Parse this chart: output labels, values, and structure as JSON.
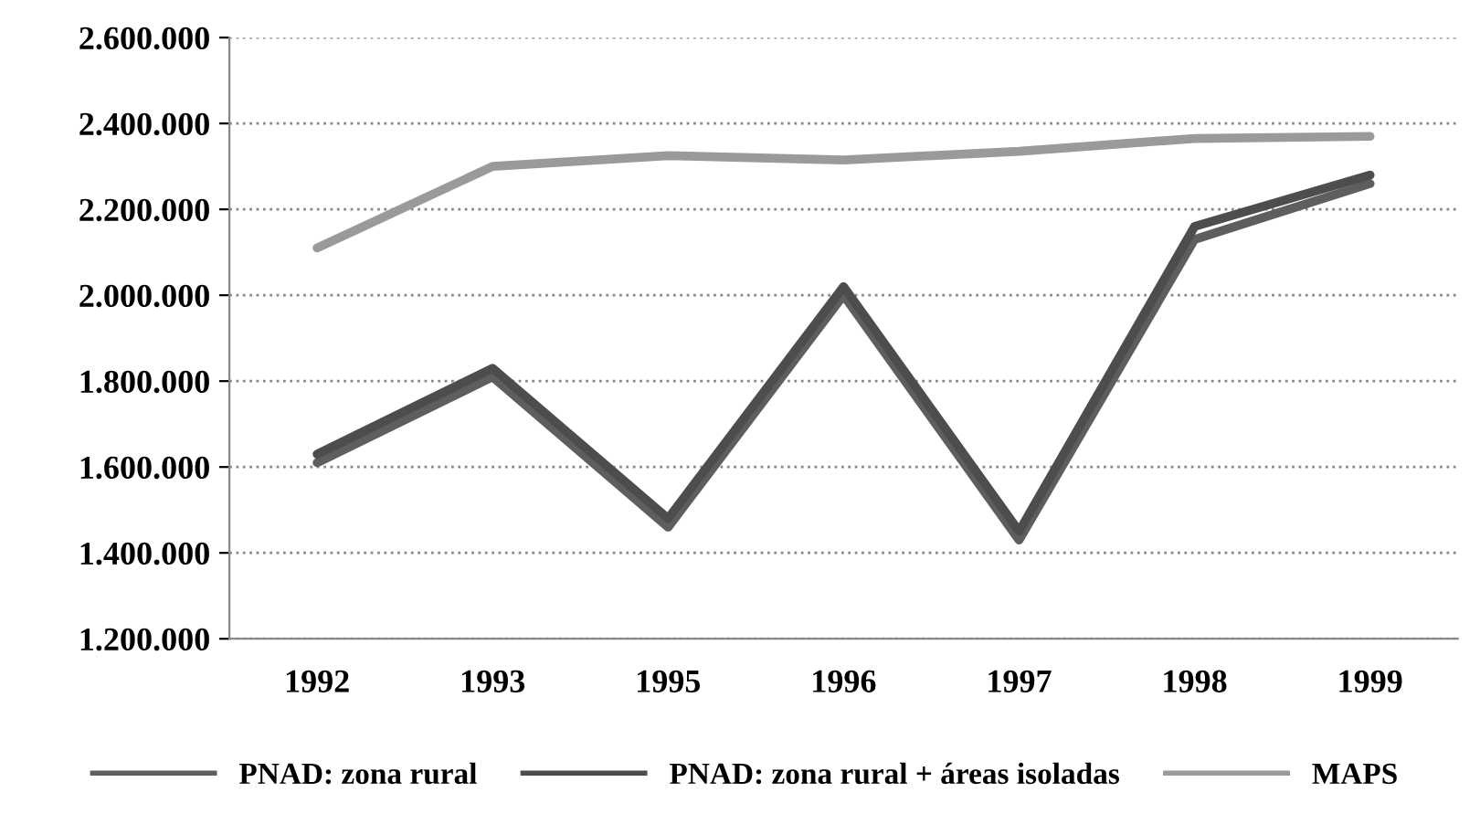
{
  "chart_data": {
    "type": "line",
    "categories": [
      "1992",
      "1993",
      "1995",
      "1996",
      "1997",
      "1998",
      "1999"
    ],
    "series": [
      {
        "name": "PNAD: zona rural",
        "color": "#5e5e5e",
        "values": [
          1610000,
          1810000,
          1460000,
          2000000,
          1430000,
          2130000,
          2260000
        ]
      },
      {
        "name": "PNAD: zona rural + áreas isoladas",
        "color": "#4d4d4d",
        "values": [
          1630000,
          1830000,
          1480000,
          2020000,
          1450000,
          2160000,
          2280000
        ]
      },
      {
        "name": "MAPS",
        "color": "#9a9a9a",
        "values": [
          2110000,
          2300000,
          2325000,
          2315000,
          2335000,
          2365000,
          2370000
        ]
      }
    ],
    "ylim": [
      1200000,
      2600000
    ],
    "yticks": [
      {
        "value": 1200000,
        "label": "1.200.000"
      },
      {
        "value": 1400000,
        "label": "1.400.000"
      },
      {
        "value": 1600000,
        "label": "1.600.000"
      },
      {
        "value": 1800000,
        "label": "1.800.000"
      },
      {
        "value": 2000000,
        "label": "2.000.000"
      },
      {
        "value": 2200000,
        "label": "2.200.000"
      },
      {
        "value": 2400000,
        "label": "2.400.000"
      },
      {
        "value": 2600000,
        "label": "2.600.000"
      }
    ],
    "grid": "y",
    "legend": "bottom",
    "marker": "none",
    "line_style": "solid"
  }
}
